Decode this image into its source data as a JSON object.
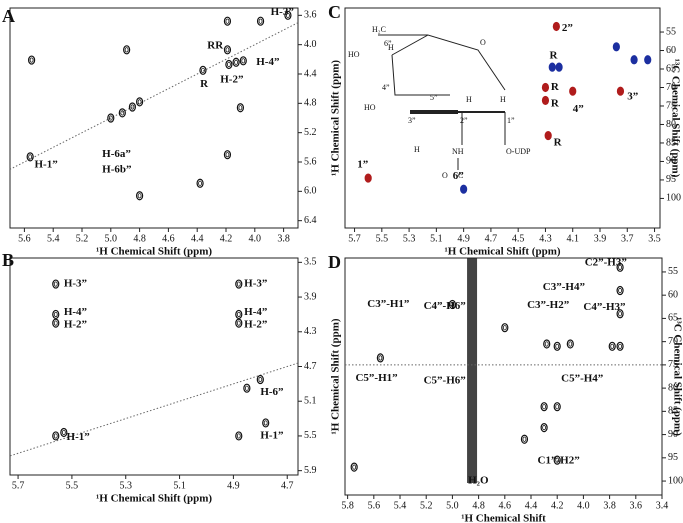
{
  "chart_data": [
    {
      "type": "scatter",
      "label": "A",
      "xlabel": "¹H Chemical Shift (ppm)",
      "xlim": [
        5.7,
        3.7
      ],
      "ylim": [
        3.5,
        6.5
      ],
      "xticks": [
        5.6,
        5.4,
        5.2,
        {
          "value": 5.0,
          "label": "5.0"
        },
        4.8,
        4.6,
        4.4,
        4.2,
        {
          "value": 4.0,
          "label": "4.0"
        },
        3.8
      ],
      "yticks": [
        3.6,
        {
          "value": 4.0,
          "label": "4.0"
        },
        4.4,
        4.8,
        5.2,
        5.6,
        {
          "value": 6.0,
          "label": "6.0"
        },
        6.4
      ],
      "series": [
        {
          "color": "#111111",
          "x": [
            3.77,
            3.96,
            4.19,
            4.89,
            4.19,
            4.18,
            4.13,
            4.08,
            4.36,
            5.55,
            4.8,
            4.85,
            4.92,
            5.0,
            4.1,
            4.19,
            4.38,
            4.8,
            5.56
          ],
          "values": [
            3.6,
            3.68,
            3.68,
            4.07,
            4.07,
            4.27,
            4.24,
            4.22,
            4.35,
            4.21,
            4.78,
            4.85,
            4.93,
            5.0,
            4.86,
            5.5,
            5.89,
            6.06,
            5.53
          ]
        }
      ],
      "annotations": [
        {
          "text": "H-3”",
          "x": 3.89,
          "y": 3.56
        },
        {
          "text": "RR",
          "x": 4.33,
          "y": 4.02
        },
        {
          "text": "H-4”",
          "x": 3.99,
          "y": 4.24
        },
        {
          "text": "H-2”",
          "x": 4.24,
          "y": 4.48
        },
        {
          "text": "R",
          "x": 4.38,
          "y": 4.54
        },
        {
          "text": "H-6a”",
          "x": 5.06,
          "y": 5.5
        },
        {
          "text": "H-6b”",
          "x": 5.06,
          "y": 5.71
        },
        {
          "text": "H-1”",
          "x": 5.53,
          "y": 5.64
        }
      ]
    },
    {
      "type": "scatter",
      "label": "B",
      "xlabel": "¹H Chemical Shift (ppm)",
      "xlim": [
        5.73,
        4.66
      ],
      "ylim": [
        3.45,
        5.95
      ],
      "xticks": [
        5.7,
        5.5,
        5.3,
        5.1,
        4.9,
        4.7
      ],
      "yticks": [
        3.5,
        3.9,
        4.3,
        4.7,
        5.1,
        5.5,
        5.9
      ],
      "series": [
        {
          "color": "#111111",
          "x": [
            5.56,
            5.56,
            5.56,
            5.56,
            5.53,
            4.88,
            4.88,
            4.88,
            4.85,
            4.8,
            4.78,
            4.88
          ],
          "values": [
            3.75,
            4.1,
            4.2,
            5.5,
            5.46,
            3.75,
            4.1,
            4.2,
            4.95,
            4.85,
            5.35,
            5.5
          ]
        }
      ],
      "annotations": [
        {
          "text": "H-3”",
          "x": 5.53,
          "y": 3.75
        },
        {
          "text": "H-4”",
          "x": 5.53,
          "y": 4.08
        },
        {
          "text": "H-2”",
          "x": 5.53,
          "y": 4.22
        },
        {
          "text": "H-1”",
          "x": 5.52,
          "y": 5.52
        },
        {
          "text": "H-3”",
          "x": 4.86,
          "y": 3.75
        },
        {
          "text": "H-4”",
          "x": 4.86,
          "y": 4.08
        },
        {
          "text": "H-2”",
          "x": 4.86,
          "y": 4.22
        },
        {
          "text": "H-6”",
          "x": 4.8,
          "y": 5.0
        },
        {
          "text": "H-1”",
          "x": 4.8,
          "y": 5.5
        }
      ]
    },
    {
      "type": "scatter",
      "label": "C",
      "xlabel": "¹H Chemical Shift (ppm)",
      "ylabel": "¹H Chemical Shift (ppm)",
      "y2label": "¹³C Chemical Shift (ppm)",
      "xlim": [
        5.77,
        3.46
      ],
      "ylim": [
        48.5,
        108
      ],
      "xticks": [
        5.7,
        5.5,
        5.3,
        5.1,
        4.9,
        4.7,
        4.5,
        4.3,
        4.1,
        3.9,
        3.7,
        3.5
      ],
      "yticks": [
        55,
        60,
        65,
        70,
        75,
        80,
        85,
        90,
        95,
        100
      ],
      "series": [
        {
          "color": "#b01c1c",
          "x": [
            4.22,
            4.3,
            4.3,
            4.1,
            3.75,
            4.28,
            5.6
          ],
          "values": [
            53.5,
            70,
            73.5,
            71,
            71,
            83,
            94.5
          ]
        },
        {
          "color": "#1c2fa0",
          "x": [
            4.25,
            4.2,
            3.78,
            3.65,
            3.55,
            4.9
          ],
          "values": [
            64.5,
            64.5,
            59,
            62.5,
            62.5,
            97.5
          ]
        }
      ],
      "annotations": [
        {
          "text": "2”",
          "x": 4.18,
          "y": 54
        },
        {
          "text": "R",
          "x": 4.27,
          "y": 61.5
        },
        {
          "text": "R",
          "x": 4.26,
          "y": 70
        },
        {
          "text": "R",
          "x": 4.26,
          "y": 74.5
        },
        {
          "text": "4”",
          "x": 4.1,
          "y": 76
        },
        {
          "text": "3”",
          "x": 3.7,
          "y": 72.5
        },
        {
          "text": "R",
          "x": 4.24,
          "y": 85
        },
        {
          "text": "1”",
          "x": 5.68,
          "y": 91
        },
        {
          "text": "6”",
          "x": 4.98,
          "y": 94
        }
      ],
      "structure_labels": [
        "H₂C",
        "6”",
        "HO",
        "H",
        "4”",
        "5”",
        "O",
        "HO",
        "3”",
        "2”",
        "1”",
        "H",
        "H",
        "H",
        "NH",
        "O",
        "C",
        "O-UDP"
      ]
    },
    {
      "type": "scatter",
      "label": "D",
      "xlabel": "¹H Chemical Shift",
      "ylabel": "¹H Chemical Shift (ppm)",
      "y2label": "¹³C Chemical Shift (ppm)",
      "xlim": [
        5.82,
        3.4
      ],
      "ylim": [
        52,
        103
      ],
      "xticks": [
        5.8,
        5.6,
        5.4,
        5.2,
        {
          "value": 5.0,
          "label": "5.0"
        },
        4.8,
        4.6,
        4.4,
        4.2,
        {
          "value": 4.0,
          "label": "4.0"
        },
        3.8,
        3.6,
        3.4
      ],
      "yticks": [
        55,
        60,
        65,
        70,
        75,
        80,
        85,
        90,
        95,
        100
      ],
      "series": [
        {
          "color": "#111111",
          "x": [
            3.72,
            3.72,
            3.72,
            3.72,
            3.78,
            4.2,
            4.28,
            4.1,
            4.6,
            5.55,
            4.3,
            4.2,
            4.3,
            4.2,
            4.45,
            5.0,
            5.75
          ],
          "values": [
            54,
            59,
            64,
            71,
            71,
            71,
            70.5,
            70.5,
            67,
            73.5,
            84,
            84,
            88.5,
            95.5,
            91,
            62,
            97
          ]
        }
      ],
      "annotations": [
        {
          "text": "C2”-H3”",
          "x": 3.99,
          "y": 53.1
        },
        {
          "text": "C3”-H4”",
          "x": 4.31,
          "y": 58.3
        },
        {
          "text": "C3”-H2”",
          "x": 4.43,
          "y": 62.2
        },
        {
          "text": "C4”-H3”",
          "x": 4.0,
          "y": 62.6
        },
        {
          "text": "C3”-H1”",
          "x": 5.65,
          "y": 62
        },
        {
          "text": "C4”-H6”",
          "x": 5.22,
          "y": 62.4
        },
        {
          "text": "C5”-H1”",
          "x": 5.74,
          "y": 77.9
        },
        {
          "text": "C5”-H6”",
          "x": 5.22,
          "y": 78.5
        },
        {
          "text": "C5”-H4”",
          "x": 4.17,
          "y": 78
        },
        {
          "text": "H₂O",
          "x": 4.88,
          "y": 100
        },
        {
          "text": "C1”-H2”",
          "x": 4.35,
          "y": 95.7
        }
      ]
    }
  ]
}
